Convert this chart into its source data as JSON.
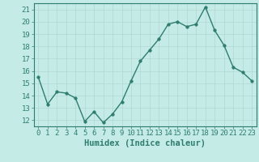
{
  "x": [
    0,
    1,
    2,
    3,
    4,
    5,
    6,
    7,
    8,
    9,
    10,
    11,
    12,
    13,
    14,
    15,
    16,
    17,
    18,
    19,
    20,
    21,
    22,
    23
  ],
  "y": [
    15.5,
    13.3,
    14.3,
    14.2,
    13.8,
    11.9,
    12.7,
    11.8,
    12.5,
    13.5,
    15.2,
    16.8,
    17.7,
    18.6,
    19.8,
    20.0,
    19.6,
    19.8,
    21.2,
    19.3,
    18.1,
    16.3,
    15.9,
    15.2
  ],
  "line_color": "#2e7d6e",
  "marker": "o",
  "marker_size": 2.5,
  "bg_color": "#c5ebe6",
  "grid_color": "#b0d8d2",
  "xlabel": "Humidex (Indice chaleur)",
  "ylim": [
    11.5,
    21.5
  ],
  "xlim": [
    -0.5,
    23.5
  ],
  "yticks": [
    12,
    13,
    14,
    15,
    16,
    17,
    18,
    19,
    20,
    21
  ],
  "xticks": [
    0,
    1,
    2,
    3,
    4,
    5,
    6,
    7,
    8,
    9,
    10,
    11,
    12,
    13,
    14,
    15,
    16,
    17,
    18,
    19,
    20,
    21,
    22,
    23
  ],
  "tick_color": "#2e7d6e",
  "label_color": "#2e7d6e",
  "axis_color": "#2e7d6e",
  "font_size": 6.5
}
